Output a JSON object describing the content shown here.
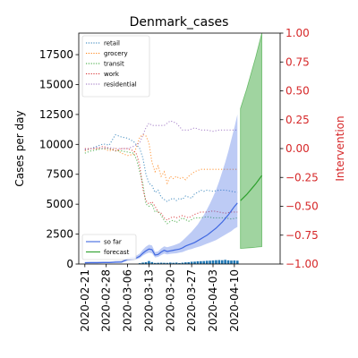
{
  "chart_data": {
    "type": "line",
    "title": "Denmark_cases",
    "ylabel": "Cases per day",
    "y2label": "Intervention",
    "colors": {
      "so_far": "#4169e1",
      "forecast": "#2ca02c",
      "bars": "#1f77b4",
      "right_axis": "#d62728",
      "retail": "#1f77b4",
      "grocery": "#ff7f0e",
      "transit": "#2ca02c",
      "work": "#d62728",
      "residential": "#9467bd"
    },
    "xlim": [
      -2,
      64
    ],
    "ylim": [
      0,
      19300
    ],
    "y2lim": [
      -1.0,
      1.0
    ],
    "x_ticks": [
      {
        "x": 0,
        "label": "2020-02-21"
      },
      {
        "x": 7,
        "label": "2020-02-28"
      },
      {
        "x": 14,
        "label": "2020-03-06"
      },
      {
        "x": 21,
        "label": "2020-03-13"
      },
      {
        "x": 28,
        "label": "2020-03-20"
      },
      {
        "x": 35,
        "label": "2020-03-27"
      },
      {
        "x": 42,
        "label": "2020-04-03"
      },
      {
        "x": 49,
        "label": "2020-04-10"
      }
    ],
    "y_ticks": [
      {
        "v": 0,
        "label": "0"
      },
      {
        "v": 2500,
        "label": "2500"
      },
      {
        "v": 5000,
        "label": "5000"
      },
      {
        "v": 7500,
        "label": "7500"
      },
      {
        "v": 10000,
        "label": "10000"
      },
      {
        "v": 12500,
        "label": "12500"
      },
      {
        "v": 15000,
        "label": "15000"
      },
      {
        "v": 17500,
        "label": "17500"
      }
    ],
    "y2_ticks": [
      {
        "v": 1.0,
        "label": "1.00"
      },
      {
        "v": 0.75,
        "label": "0.75"
      },
      {
        "v": 0.5,
        "label": "0.50"
      },
      {
        "v": 0.25,
        "label": "0.25"
      },
      {
        "v": 0.0,
        "label": "0.00"
      },
      {
        "v": -0.25,
        "label": "−0.25"
      },
      {
        "v": -0.5,
        "label": "−0.50"
      },
      {
        "v": -0.75,
        "label": "−0.75"
      },
      {
        "v": -1.0,
        "label": "−1.00"
      }
    ],
    "legend_top": [
      "retail",
      "grocery",
      "transit",
      "work",
      "residential"
    ],
    "legend_bottom": [
      "so far",
      "forecast"
    ],
    "bars": {
      "x": [
        18,
        19,
        20,
        21,
        22,
        23,
        24,
        25,
        26,
        27,
        28,
        29,
        30,
        31,
        32,
        33,
        34,
        35,
        36,
        37,
        38,
        39,
        40,
        41,
        42,
        43,
        44,
        45,
        46,
        47,
        48,
        49,
        50
      ],
      "values": [
        70,
        120,
        150,
        250,
        160,
        90,
        100,
        110,
        100,
        95,
        120,
        100,
        120,
        80,
        110,
        140,
        150,
        190,
        200,
        230,
        240,
        250,
        270,
        280,
        300,
        320,
        330,
        320,
        350,
        310,
        290,
        300,
        280
      ]
    },
    "so_far": {
      "x": [
        0,
        2,
        4,
        6,
        8,
        10,
        12,
        13,
        14,
        15,
        16,
        17,
        18,
        19,
        20,
        21,
        22,
        23,
        24,
        25,
        26,
        27,
        28,
        29,
        30,
        31,
        32,
        33,
        34,
        35,
        36,
        37,
        38,
        39,
        40,
        41,
        42,
        43,
        44,
        45,
        46,
        47,
        48,
        49,
        50
      ],
      "y": [
        100,
        110,
        110,
        120,
        120,
        150,
        160,
        280,
        380,
        410,
        440,
        520,
        650,
        900,
        1100,
        1250,
        1200,
        750,
        800,
        1000,
        1150,
        1050,
        1100,
        1150,
        1200,
        1250,
        1350,
        1500,
        1600,
        1700,
        1800,
        1950,
        2100,
        2250,
        2400,
        2600,
        2800,
        3000,
        3250,
        3500,
        3800,
        4100,
        4450,
        4800,
        5100
      ],
      "lower": [
        50,
        60,
        60,
        70,
        70,
        100,
        110,
        200,
        280,
        300,
        330,
        400,
        500,
        700,
        850,
        950,
        900,
        550,
        600,
        750,
        870,
        800,
        850,
        880,
        900,
        950,
        1000,
        1100,
        1200,
        1250,
        1350,
        1420,
        1500,
        1600,
        1700,
        1800,
        1900,
        2000,
        2150,
        2300,
        2450,
        2600,
        2750,
        2950,
        3100
      ],
      "upper": [
        180,
        200,
        200,
        210,
        210,
        250,
        270,
        420,
        540,
        580,
        620,
        720,
        880,
        1200,
        1450,
        1620,
        1550,
        1000,
        1050,
        1300,
        1480,
        1400,
        1480,
        1550,
        1650,
        1750,
        1950,
        2200,
        2450,
        2700,
        3000,
        3300,
        3700,
        4100,
        4550,
        5050,
        5600,
        6200,
        6900,
        7700,
        8500,
        9400,
        10400,
        11400,
        12500
      ]
    },
    "forecast": {
      "x": [
        51,
        52,
        53,
        54,
        55,
        56,
        57,
        58
      ],
      "y": [
        5300,
        5550,
        5800,
        6100,
        6400,
        6700,
        7050,
        7400
      ],
      "lower": [
        1300,
        1320,
        1340,
        1360,
        1380,
        1400,
        1430,
        1450
      ],
      "upper": [
        13000,
        13800,
        14600,
        15500,
        16400,
        17300,
        18300,
        19300
      ]
    },
    "mobility": {
      "retail": {
        "x": [
          0,
          2,
          4,
          6,
          8,
          10,
          12,
          14,
          16,
          17,
          18,
          19,
          20,
          21,
          22,
          23,
          24,
          25,
          26,
          27,
          28,
          29,
          30,
          31,
          32,
          33,
          34,
          35,
          36,
          37,
          38,
          39,
          40,
          42,
          44,
          46,
          48,
          50
        ],
        "y": [
          -0.01,
          0.0,
          0.02,
          0.04,
          0.03,
          0.12,
          0.1,
          0.09,
          0.06,
          0.03,
          0.0,
          -0.08,
          -0.22,
          -0.3,
          -0.32,
          -0.38,
          -0.36,
          -0.42,
          -0.44,
          -0.46,
          -0.44,
          -0.43,
          -0.45,
          -0.43,
          -0.44,
          -0.41,
          -0.42,
          -0.43,
          -0.39,
          -0.38,
          -0.36,
          -0.37,
          -0.36,
          -0.37,
          -0.36,
          -0.36,
          -0.37,
          -0.38
        ]
      },
      "grocery": {
        "x": [
          0,
          2,
          4,
          6,
          8,
          10,
          12,
          14,
          16,
          17,
          18,
          19,
          20,
          21,
          22,
          23,
          24,
          25,
          26,
          27,
          28,
          29,
          30,
          31,
          32,
          33,
          34,
          36,
          38,
          40,
          42,
          44,
          46,
          48,
          50
        ],
        "y": [
          -0.02,
          0.0,
          0.0,
          0.0,
          -0.02,
          0.0,
          -0.04,
          -0.06,
          -0.05,
          0.02,
          0.1,
          0.12,
          0.11,
          0.05,
          -0.12,
          -0.2,
          -0.15,
          -0.24,
          -0.2,
          -0.3,
          -0.24,
          -0.26,
          -0.24,
          -0.26,
          -0.25,
          -0.27,
          -0.24,
          -0.2,
          -0.18,
          -0.18,
          -0.18,
          -0.18,
          -0.18,
          -0.18,
          -0.18
        ]
      },
      "transit": {
        "x": [
          0,
          2,
          4,
          6,
          8,
          10,
          12,
          14,
          16,
          17,
          18,
          19,
          20,
          21,
          22,
          23,
          24,
          25,
          26,
          27,
          28,
          29,
          30,
          32,
          34,
          36,
          38,
          40,
          42,
          44,
          46,
          48,
          50
        ],
        "y": [
          -0.04,
          -0.02,
          -0.01,
          0.0,
          0.0,
          -0.02,
          -0.02,
          -0.03,
          -0.04,
          -0.1,
          -0.2,
          -0.3,
          -0.48,
          -0.5,
          -0.48,
          -0.55,
          -0.54,
          -0.58,
          -0.62,
          -0.65,
          -0.63,
          -0.62,
          -0.64,
          -0.6,
          -0.63,
          -0.6,
          -0.6,
          -0.59,
          -0.6,
          -0.6,
          -0.6,
          -0.61,
          -0.6
        ]
      },
      "work": {
        "x": [
          0,
          2,
          4,
          6,
          8,
          10,
          12,
          14,
          16,
          17,
          18,
          19,
          20,
          21,
          22,
          23,
          24,
          25,
          26,
          27,
          28,
          29,
          30,
          32,
          34,
          36,
          38,
          40,
          42,
          44,
          46,
          48,
          50
        ],
        "y": [
          0.0,
          0.0,
          0.0,
          0.02,
          0.0,
          -0.02,
          0.0,
          0.0,
          -0.02,
          -0.05,
          -0.15,
          -0.35,
          -0.45,
          -0.48,
          -0.46,
          -0.5,
          -0.55,
          -0.56,
          -0.6,
          -0.62,
          -0.6,
          -0.59,
          -0.6,
          -0.58,
          -0.6,
          -0.57,
          -0.55,
          -0.55,
          -0.54,
          -0.55,
          -0.56,
          -0.55,
          -0.55
        ]
      },
      "residential": {
        "x": [
          0,
          2,
          4,
          6,
          8,
          10,
          12,
          14,
          16,
          18,
          20,
          21,
          22,
          24,
          26,
          28,
          30,
          32,
          34,
          36,
          38,
          40,
          42,
          44,
          46,
          48,
          50
        ],
        "y": [
          -0.01,
          0.0,
          0.01,
          0.0,
          0.01,
          0.0,
          0.0,
          0.0,
          0.02,
          0.05,
          0.18,
          0.22,
          0.2,
          0.2,
          0.2,
          0.24,
          0.22,
          0.16,
          0.16,
          0.18,
          0.16,
          0.16,
          0.15,
          0.16,
          0.16,
          0.16,
          0.16
        ]
      }
    }
  }
}
